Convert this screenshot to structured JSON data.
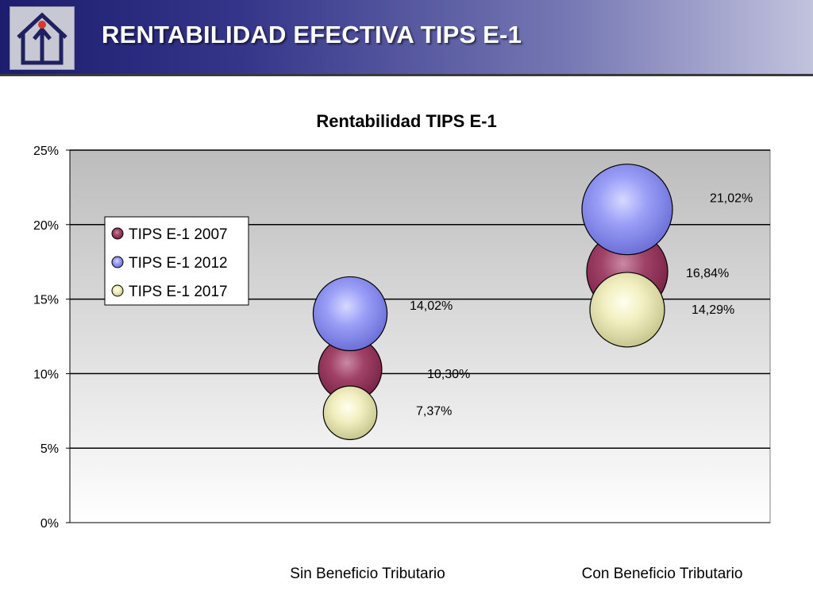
{
  "slide": {
    "title": "RENTABILIDAD EFECTIVA TIPS E-1"
  },
  "logo": {
    "icon": "house-up-arrow-icon"
  },
  "colors": {
    "header_dark": "#1c1d6e",
    "header_light": "#c2c3dd",
    "series": [
      "#8e3058",
      "#8a8ef2",
      "#f4f3c4"
    ],
    "series_stroke": "#000000",
    "plot_bg_top": "#bdbdbd",
    "plot_bg_bottom": "#ffffff"
  },
  "chart_data": {
    "type": "bubble",
    "title": "Rentabilidad TIPS E-1",
    "categories": [
      "Sin Beneficio Tributario",
      "Con Beneficio Tributario"
    ],
    "ylim": [
      0,
      25
    ],
    "yticks": [
      0,
      5,
      10,
      15,
      20,
      25
    ],
    "ytick_labels": [
      "0%",
      "5%",
      "10%",
      "15%",
      "20%",
      "25%"
    ],
    "grid": true,
    "legend_position": "left",
    "series": [
      {
        "name": "TIPS E-1 2007",
        "values": [
          10.3,
          16.84
        ],
        "labels": [
          "10,30%",
          "16,84%"
        ]
      },
      {
        "name": "TIPS E-1 2012",
        "values": [
          14.02,
          21.02
        ],
        "labels": [
          "14,02%",
          "21,02%"
        ]
      },
      {
        "name": "TIPS E-1 2017",
        "values": [
          7.37,
          14.29
        ],
        "labels": [
          "7,37%",
          "14,29%"
        ]
      }
    ]
  }
}
